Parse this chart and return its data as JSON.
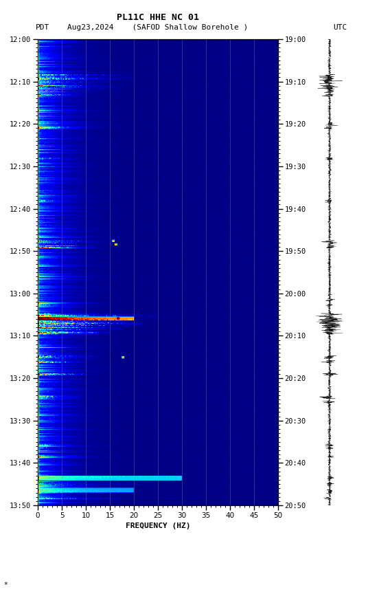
{
  "title_line1": "PL11C HHE NC 01",
  "title_line2": "Aug23,2024    (SAFOD Shallow Borehole )",
  "label_left": "PDT",
  "label_right": "UTC",
  "freq_min": 0,
  "freq_max": 50,
  "freq_label": "FREQUENCY (HZ)",
  "time_ticks_left": [
    "12:00",
    "12:10",
    "12:20",
    "12:30",
    "12:40",
    "12:50",
    "13:00",
    "13:10",
    "13:20",
    "13:30",
    "13:40",
    "13:50"
  ],
  "time_ticks_right": [
    "19:00",
    "19:10",
    "19:20",
    "19:30",
    "19:40",
    "19:50",
    "20:00",
    "20:10",
    "20:20",
    "20:30",
    "20:40",
    "20:50"
  ],
  "freq_ticks": [
    0,
    5,
    10,
    15,
    20,
    25,
    30,
    35,
    40,
    45,
    50
  ],
  "background_color": "#ffffff",
  "colormap": "jet",
  "seed": 42,
  "n_time": 660,
  "n_freq": 500
}
